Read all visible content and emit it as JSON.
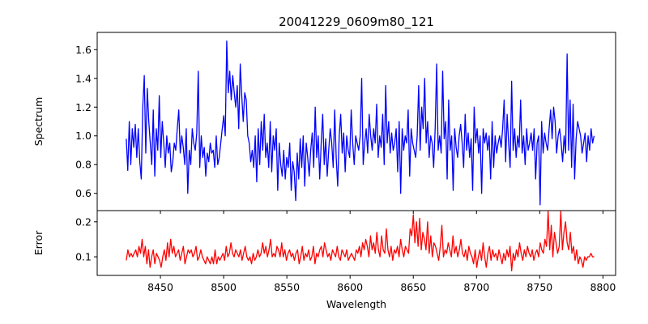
{
  "chart_data": {
    "type": "line",
    "title": "20041229_0609m80_121",
    "xlabel": "Wavelength",
    "xlim": [
      8400,
      8810
    ],
    "xticks": [
      8450,
      8500,
      8550,
      8600,
      8650,
      8700,
      8750,
      8800
    ],
    "xtick_labels": [
      "8450",
      "8500",
      "8550",
      "8600",
      "8650",
      "8700",
      "8750",
      "8800"
    ],
    "x_start": 8423,
    "x_end": 8793,
    "grid": false,
    "panels": [
      {
        "name": "spectrum",
        "ylabel": "Spectrum",
        "ylim": [
          0.48,
          1.72
        ],
        "yticks": [
          0.6,
          0.8,
          1.0,
          1.2,
          1.4,
          1.6
        ],
        "ytick_labels": [
          "0.6",
          "0.8",
          "1.0",
          "1.2",
          "1.4",
          "1.6"
        ],
        "color": "#0000ff",
        "values": [
          0.98,
          0.76,
          1.1,
          0.8,
          1.05,
          0.92,
          1.08,
          0.85,
          1.05,
          0.82,
          0.7,
          1.2,
          1.42,
          0.88,
          1.33,
          1.1,
          0.95,
          0.8,
          1.18,
          0.72,
          1.05,
          0.9,
          1.28,
          0.85,
          1.1,
          0.95,
          0.78,
          1.0,
          0.88,
          0.95,
          0.75,
          0.82,
          0.95,
          0.9,
          1.05,
          1.18,
          0.88,
          1.0,
          0.92,
          0.8,
          1.05,
          0.6,
          0.9,
          0.8,
          1.05,
          0.95,
          0.9,
          1.02,
          1.45,
          0.78,
          1.0,
          0.85,
          0.92,
          0.72,
          0.88,
          0.82,
          0.95,
          0.88,
          0.9,
          0.78,
          1.0,
          0.8,
          0.85,
          0.95,
          1.05,
          1.14,
          1.0,
          1.66,
          1.3,
          1.45,
          1.25,
          1.42,
          1.3,
          1.2,
          1.35,
          1.05,
          1.5,
          1.28,
          1.1,
          1.3,
          1.25,
          1.0,
          0.95,
          0.82,
          0.9,
          0.78,
          1.0,
          0.68,
          1.05,
          0.8,
          1.1,
          0.9,
          1.15,
          0.85,
          0.95,
          0.78,
          1.1,
          0.75,
          1.0,
          0.9,
          1.05,
          0.62,
          0.95,
          0.8,
          0.72,
          0.9,
          0.7,
          0.85,
          0.78,
          0.95,
          0.62,
          0.82,
          0.75,
          0.55,
          0.88,
          0.7,
          0.98,
          0.78,
          1.0,
          0.65,
          0.95,
          0.85,
          0.72,
          0.9,
          1.02,
          0.78,
          1.2,
          0.85,
          1.0,
          0.7,
          0.95,
          1.15,
          0.8,
          0.98,
          0.72,
          0.9,
          1.05,
          0.95,
          0.78,
          1.18,
          0.85,
          0.65,
          1.0,
          1.15,
          0.88,
          1.02,
          0.75,
          1.0,
          0.9,
          0.85,
          1.18,
          0.95,
          0.8,
          1.0,
          0.95,
          0.9,
          1.0,
          1.4,
          0.8,
          0.95,
          1.05,
          0.88,
          1.15,
          1.0,
          0.9,
          1.05,
          0.95,
          1.22,
          0.85,
          1.0,
          0.92,
          1.15,
          0.8,
          1.35,
          0.95,
          1.1,
          0.88,
          1.02,
          0.9,
          0.95,
          1.05,
          0.75,
          1.1,
          0.6,
          1.05,
          0.9,
          1.0,
          0.95,
          1.18,
          0.72,
          1.05,
          0.95,
          0.9,
          0.85,
          1.0,
          1.35,
          0.9,
          1.2,
          1.05,
          1.4,
          0.95,
          1.1,
          0.85,
          1.0,
          0.95,
          0.78,
          1.05,
          1.5,
          0.9,
          1.0,
          0.88,
          1.45,
          0.98,
          1.1,
          0.7,
          1.25,
          0.9,
          1.0,
          0.62,
          1.05,
          0.92,
          0.85,
          1.0,
          1.08,
          0.95,
          0.78,
          1.15,
          0.9,
          1.02,
          0.85,
          0.98,
          0.62,
          1.2,
          0.95,
          1.05,
          0.88,
          1.0,
          0.6,
          1.05,
          0.95,
          1.02,
          0.9,
          1.0,
          0.7,
          1.1,
          0.78,
          1.0,
          0.88,
          0.95,
          1.0,
          0.92,
          1.05,
          1.25,
          0.82,
          1.15,
          0.95,
          0.78,
          1.38,
          0.9,
          1.05,
          0.85,
          1.0,
          0.92,
          1.25,
          0.88,
          1.0,
          0.8,
          1.05,
          0.9,
          0.95,
          1.02,
          0.9,
          1.05,
          0.7,
          0.95,
          1.0,
          0.52,
          1.1,
          0.88,
          1.02,
          0.95,
          0.9,
          1.05,
          1.18,
          0.98,
          1.2,
          1.1,
          0.88,
          1.0,
          1.05,
          0.95,
          0.82,
          1.0,
          0.88,
          1.57,
          0.9,
          1.25,
          0.78,
          1.22,
          0.7,
          0.98,
          1.1,
          1.05,
          1.0,
          0.88,
          0.95,
          1.02,
          0.82,
          1.0,
          0.9,
          1.05,
          0.95,
          1.0
        ]
      },
      {
        "name": "error",
        "ylabel": "Error",
        "ylim": [
          0.047,
          0.232
        ],
        "yticks": [
          0.1,
          0.2
        ],
        "ytick_labels": [
          "0.1",
          "0.2"
        ],
        "color": "#ff0000",
        "values": [
          0.09,
          0.12,
          0.1,
          0.11,
          0.1,
          0.11,
          0.12,
          0.1,
          0.13,
          0.11,
          0.15,
          0.1,
          0.13,
          0.08,
          0.12,
          0.07,
          0.1,
          0.12,
          0.08,
          0.11,
          0.1,
          0.09,
          0.07,
          0.1,
          0.12,
          0.09,
          0.14,
          0.1,
          0.15,
          0.11,
          0.13,
          0.1,
          0.11,
          0.12,
          0.09,
          0.11,
          0.13,
          0.08,
          0.1,
          0.12,
          0.11,
          0.12,
          0.1,
          0.11,
          0.13,
          0.09,
          0.1,
          0.12,
          0.1,
          0.09,
          0.08,
          0.1,
          0.09,
          0.08,
          0.1,
          0.08,
          0.12,
          0.08,
          0.1,
          0.09,
          0.1,
          0.11,
          0.09,
          0.13,
          0.1,
          0.11,
          0.14,
          0.11,
          0.1,
          0.12,
          0.11,
          0.1,
          0.12,
          0.09,
          0.11,
          0.13,
          0.1,
          0.09,
          0.1,
          0.08,
          0.11,
          0.09,
          0.1,
          0.12,
          0.1,
          0.11,
          0.14,
          0.11,
          0.13,
          0.1,
          0.12,
          0.15,
          0.1,
          0.11,
          0.1,
          0.13,
          0.12,
          0.1,
          0.14,
          0.1,
          0.12,
          0.09,
          0.11,
          0.12,
          0.1,
          0.11,
          0.09,
          0.11,
          0.12,
          0.08,
          0.1,
          0.13,
          0.09,
          0.11,
          0.1,
          0.12,
          0.09,
          0.1,
          0.13,
          0.08,
          0.11,
          0.1,
          0.12,
          0.13,
          0.1,
          0.14,
          0.12,
          0.1,
          0.11,
          0.09,
          0.12,
          0.11,
          0.1,
          0.13,
          0.1,
          0.09,
          0.12,
          0.11,
          0.1,
          0.12,
          0.09,
          0.1,
          0.11,
          0.1,
          0.09,
          0.12,
          0.11,
          0.13,
          0.1,
          0.14,
          0.12,
          0.15,
          0.13,
          0.1,
          0.16,
          0.12,
          0.14,
          0.11,
          0.17,
          0.12,
          0.1,
          0.16,
          0.12,
          0.11,
          0.18,
          0.12,
          0.1,
          0.13,
          0.09,
          0.12,
          0.11,
          0.13,
          0.1,
          0.15,
          0.12,
          0.1,
          0.13,
          0.12,
          0.11,
          0.18,
          0.16,
          0.22,
          0.14,
          0.2,
          0.13,
          0.21,
          0.12,
          0.17,
          0.15,
          0.12,
          0.2,
          0.11,
          0.16,
          0.1,
          0.14,
          0.13,
          0.11,
          0.09,
          0.13,
          0.19,
          0.1,
          0.12,
          0.11,
          0.14,
          0.12,
          0.1,
          0.16,
          0.11,
          0.13,
          0.1,
          0.12,
          0.15,
          0.11,
          0.1,
          0.12,
          0.09,
          0.13,
          0.11,
          0.1,
          0.08,
          0.12,
          0.07,
          0.1,
          0.12,
          0.09,
          0.14,
          0.1,
          0.07,
          0.11,
          0.13,
          0.09,
          0.12,
          0.1,
          0.11,
          0.09,
          0.12,
          0.1,
          0.08,
          0.11,
          0.09,
          0.12,
          0.1,
          0.13,
          0.06,
          0.11,
          0.09,
          0.12,
          0.1,
          0.14,
          0.11,
          0.09,
          0.12,
          0.1,
          0.13,
          0.11,
          0.1,
          0.12,
          0.09,
          0.11,
          0.12,
          0.1,
          0.14,
          0.12,
          0.11,
          0.15,
          0.13,
          0.23,
          0.12,
          0.19,
          0.1,
          0.17,
          0.14,
          0.11,
          0.13,
          0.23,
          0.12,
          0.17,
          0.2,
          0.14,
          0.12,
          0.17,
          0.11,
          0.13,
          0.09,
          0.12,
          0.08,
          0.1,
          0.09,
          0.07,
          0.1,
          0.09,
          0.1,
          0.1,
          0.11,
          0.1,
          0.1
        ]
      }
    ]
  }
}
